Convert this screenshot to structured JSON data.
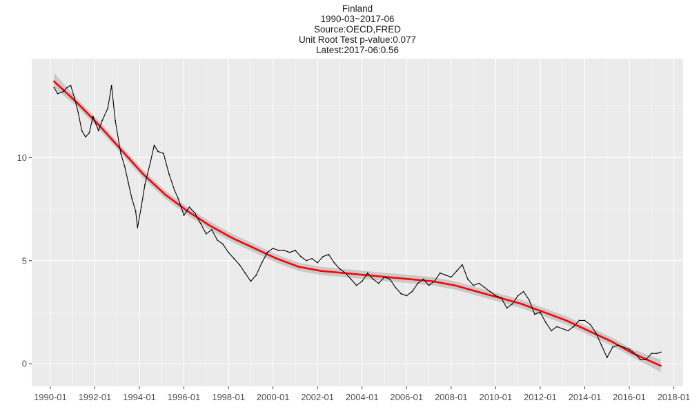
{
  "chart_data": {
    "type": "line",
    "title": "Finland",
    "subtitle_lines": [
      "1990-03~2017-06",
      "Source:OECD,FRED",
      "Unit Root Test p-value:0.077",
      "Latest:2017-06:0.56"
    ],
    "xlabel": "",
    "ylabel": "",
    "x_ticks": [
      "1990-01",
      "1992-01",
      "1994-01",
      "1996-01",
      "1998-01",
      "2000-01",
      "2002-01",
      "2004-01",
      "2006-01",
      "2008-01",
      "2010-01",
      "2012-01",
      "2014-01",
      "2016-01",
      "2018-01"
    ],
    "y_ticks": [
      0,
      5,
      10
    ],
    "xlim": [
      "1989-03-01",
      "2018-06-01"
    ],
    "ylim": [
      -1.1,
      14.8
    ],
    "grid": true,
    "background": "#EBEBEB",
    "series": [
      {
        "style": "line",
        "color": "#000000",
        "points": [
          [
            "1990-03",
            13.4
          ],
          [
            "1990-05",
            13.1
          ],
          [
            "1990-08",
            13.2
          ],
          [
            "1990-10",
            13.4
          ],
          [
            "1990-12",
            13.5
          ],
          [
            "1991-02",
            12.9
          ],
          [
            "1991-04",
            12.2
          ],
          [
            "1991-06",
            11.3
          ],
          [
            "1991-08",
            11.0
          ],
          [
            "1991-10",
            11.2
          ],
          [
            "1991-12",
            12.0
          ],
          [
            "1992-03",
            11.3
          ],
          [
            "1992-05",
            11.8
          ],
          [
            "1992-08",
            12.4
          ],
          [
            "1992-10",
            13.5
          ],
          [
            "1992-12",
            11.8
          ],
          [
            "1993-03",
            10.2
          ],
          [
            "1993-05",
            9.6
          ],
          [
            "1993-07",
            8.8
          ],
          [
            "1993-09",
            8.0
          ],
          [
            "1993-11",
            7.4
          ],
          [
            "1993-12",
            6.6
          ],
          [
            "1994-02",
            7.6
          ],
          [
            "1994-04",
            8.7
          ],
          [
            "1994-07",
            9.8
          ],
          [
            "1994-09",
            10.6
          ],
          [
            "1994-11",
            10.3
          ],
          [
            "1995-02",
            10.2
          ],
          [
            "1995-05",
            9.2
          ],
          [
            "1995-08",
            8.4
          ],
          [
            "1995-10",
            8.0
          ],
          [
            "1996-01",
            7.2
          ],
          [
            "1996-04",
            7.6
          ],
          [
            "1996-07",
            7.3
          ],
          [
            "1996-10",
            6.8
          ],
          [
            "1997-01",
            6.3
          ],
          [
            "1997-04",
            6.5
          ],
          [
            "1997-07",
            6.0
          ],
          [
            "1997-10",
            5.8
          ],
          [
            "1998-01",
            5.4
          ],
          [
            "1998-04",
            5.1
          ],
          [
            "1998-07",
            4.8
          ],
          [
            "1998-10",
            4.4
          ],
          [
            "1999-01",
            4.0
          ],
          [
            "1999-04",
            4.3
          ],
          [
            "1999-07",
            4.9
          ],
          [
            "1999-10",
            5.4
          ],
          [
            "2000-01",
            5.6
          ],
          [
            "2000-04",
            5.5
          ],
          [
            "2000-07",
            5.5
          ],
          [
            "2000-10",
            5.4
          ],
          [
            "2001-01",
            5.5
          ],
          [
            "2001-04",
            5.2
          ],
          [
            "2001-07",
            5.0
          ],
          [
            "2001-10",
            5.1
          ],
          [
            "2002-01",
            4.9
          ],
          [
            "2002-04",
            5.2
          ],
          [
            "2002-07",
            5.3
          ],
          [
            "2002-10",
            4.9
          ],
          [
            "2003-01",
            4.6
          ],
          [
            "2003-04",
            4.4
          ],
          [
            "2003-07",
            4.1
          ],
          [
            "2003-10",
            3.8
          ],
          [
            "2004-01",
            4.0
          ],
          [
            "2004-04",
            4.4
          ],
          [
            "2004-07",
            4.1
          ],
          [
            "2004-10",
            3.9
          ],
          [
            "2005-01",
            4.2
          ],
          [
            "2005-04",
            4.1
          ],
          [
            "2005-07",
            3.7
          ],
          [
            "2005-10",
            3.4
          ],
          [
            "2006-01",
            3.3
          ],
          [
            "2006-04",
            3.5
          ],
          [
            "2006-07",
            3.9
          ],
          [
            "2006-10",
            4.1
          ],
          [
            "2007-01",
            3.8
          ],
          [
            "2007-04",
            4.0
          ],
          [
            "2007-07",
            4.4
          ],
          [
            "2007-10",
            4.3
          ],
          [
            "2008-01",
            4.2
          ],
          [
            "2008-04",
            4.5
          ],
          [
            "2008-07",
            4.8
          ],
          [
            "2008-10",
            4.1
          ],
          [
            "2009-01",
            3.8
          ],
          [
            "2009-04",
            3.9
          ],
          [
            "2009-07",
            3.7
          ],
          [
            "2009-10",
            3.5
          ],
          [
            "2010-01",
            3.3
          ],
          [
            "2010-04",
            3.2
          ],
          [
            "2010-07",
            2.7
          ],
          [
            "2010-10",
            2.9
          ],
          [
            "2011-01",
            3.3
          ],
          [
            "2011-04",
            3.5
          ],
          [
            "2011-07",
            3.1
          ],
          [
            "2011-10",
            2.4
          ],
          [
            "2012-01",
            2.5
          ],
          [
            "2012-04",
            2.0
          ],
          [
            "2012-07",
            1.6
          ],
          [
            "2012-10",
            1.8
          ],
          [
            "2013-01",
            1.7
          ],
          [
            "2013-04",
            1.6
          ],
          [
            "2013-07",
            1.8
          ],
          [
            "2013-10",
            2.1
          ],
          [
            "2014-01",
            2.1
          ],
          [
            "2014-04",
            1.9
          ],
          [
            "2014-07",
            1.5
          ],
          [
            "2014-10",
            0.9
          ],
          [
            "2015-01",
            0.3
          ],
          [
            "2015-04",
            0.8
          ],
          [
            "2015-07",
            0.9
          ],
          [
            "2015-10",
            0.8
          ],
          [
            "2016-01",
            0.7
          ],
          [
            "2016-04",
            0.5
          ],
          [
            "2016-07",
            0.2
          ],
          [
            "2016-10",
            0.2
          ],
          [
            "2017-01",
            0.5
          ],
          [
            "2017-04",
            0.5
          ],
          [
            "2017-06",
            0.56
          ]
        ]
      },
      {
        "style": "smooth-trend",
        "color": "#FF0000",
        "band_color": "#BEBEBE",
        "points": [
          [
            "1990-03",
            13.7,
            13.4,
            14.1
          ],
          [
            "1991-03",
            12.7,
            12.5,
            12.9
          ],
          [
            "1992-03",
            11.6,
            11.4,
            11.8
          ],
          [
            "1993-03",
            10.4,
            10.2,
            10.6
          ],
          [
            "1994-03",
            9.2,
            9.0,
            9.4
          ],
          [
            "1995-03",
            8.2,
            8.0,
            8.4
          ],
          [
            "1996-03",
            7.4,
            7.2,
            7.6
          ],
          [
            "1997-03",
            6.7,
            6.5,
            6.9
          ],
          [
            "1998-03",
            6.1,
            5.9,
            6.3
          ],
          [
            "1999-03",
            5.6,
            5.4,
            5.8
          ],
          [
            "2000-03",
            5.1,
            4.9,
            5.3
          ],
          [
            "2001-03",
            4.7,
            4.5,
            4.9
          ],
          [
            "2002-03",
            4.5,
            4.3,
            4.7
          ],
          [
            "2003-03",
            4.4,
            4.2,
            4.6
          ],
          [
            "2004-03",
            4.3,
            4.1,
            4.5
          ],
          [
            "2005-03",
            4.2,
            4.0,
            4.4
          ],
          [
            "2006-03",
            4.1,
            3.9,
            4.3
          ],
          [
            "2007-03",
            4.0,
            3.8,
            4.2
          ],
          [
            "2008-03",
            3.8,
            3.6,
            4.0
          ],
          [
            "2009-03",
            3.5,
            3.3,
            3.7
          ],
          [
            "2010-03",
            3.2,
            3.0,
            3.4
          ],
          [
            "2011-03",
            2.9,
            2.7,
            3.1
          ],
          [
            "2012-03",
            2.5,
            2.3,
            2.7
          ],
          [
            "2013-03",
            2.1,
            1.9,
            2.3
          ],
          [
            "2014-03",
            1.6,
            1.4,
            1.8
          ],
          [
            "2015-03",
            1.1,
            0.9,
            1.3
          ],
          [
            "2016-03",
            0.5,
            0.3,
            0.7
          ],
          [
            "2017-06",
            -0.1,
            -0.4,
            0.2
          ]
        ]
      }
    ]
  }
}
